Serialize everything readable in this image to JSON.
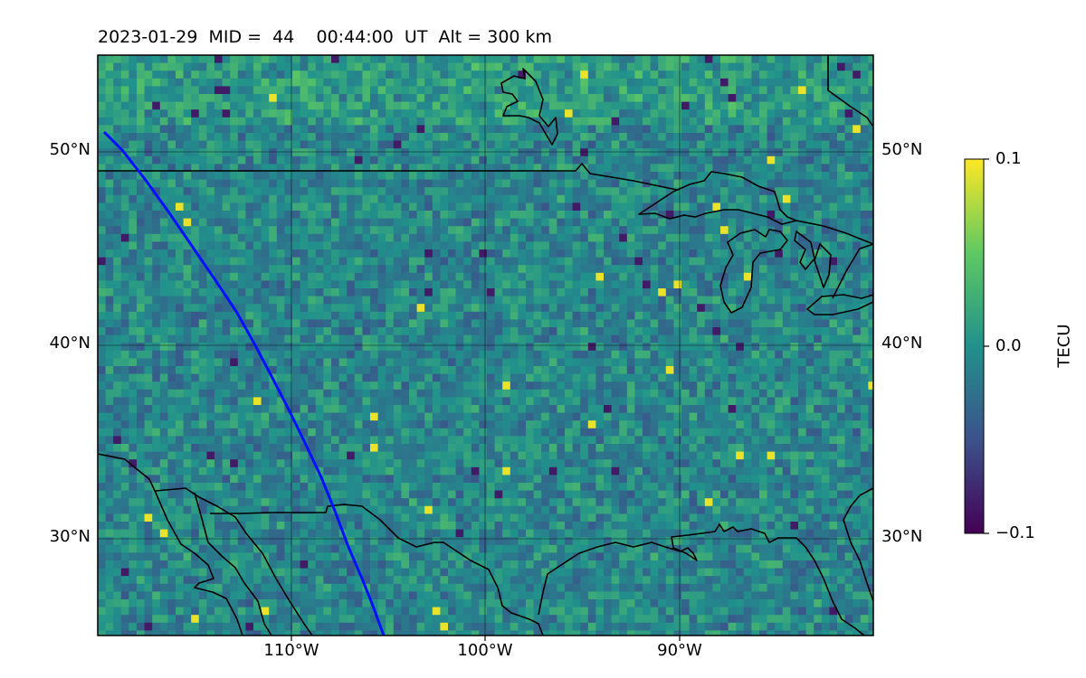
{
  "map": {
    "title": "2023-01-29  MID =  44    00:44:00  UT  Alt = 300 km",
    "region": {
      "lon_range": [
        -120,
        -80
      ],
      "lat_range": [
        25,
        55
      ]
    },
    "gridlines": {
      "lon": [
        -110,
        -100,
        -90
      ],
      "lat": [
        30,
        40,
        50
      ]
    },
    "lat_labels": [
      "50°N",
      "40°N",
      "30°N"
    ],
    "lon_labels": [
      "110°W",
      "100°W",
      "90°W"
    ],
    "colormap": "viridis",
    "background_color": "#2a7c8e",
    "track_color": "#0010ff",
    "coastline_color": "#000000"
  },
  "colorbar": {
    "label": "TECU",
    "ticks": [
      "0.1",
      "0.0",
      "−0.1"
    ],
    "range": [
      -0.1,
      0.1
    ]
  }
}
